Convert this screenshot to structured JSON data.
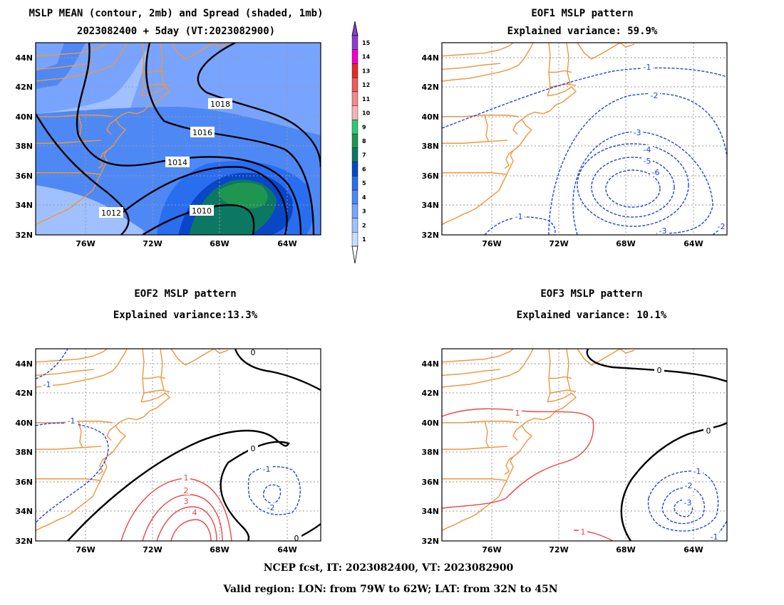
{
  "titles": {
    "p1_line1": "MSLP MEAN (contour, 2mb) and Spread (shaded, 1mb)",
    "p1_line2": "2023082400 + 5day (VT:2023082900)",
    "p2_line1": "EOF1 MSLP pattern",
    "p2_line2": "Explained variance: 59.9%",
    "p3_line1": "EOF2 MSLP pattern",
    "p3_line2": "Explained variance:13.3%",
    "p4_line1": "EOF3 MSLP pattern",
    "p4_line2": "Explained variance: 10.1%"
  },
  "footer": {
    "line1": "NCEP fcst, IT: 2023082400, VT: 2023082900",
    "line2": "Valid region: LON: from 79W to 62W; LAT: from 32N to 45N"
  },
  "axes": {
    "lat_labels": [
      "32N",
      "34N",
      "36N",
      "38N",
      "40N",
      "42N",
      "44N"
    ],
    "lon_labels": [
      "76W",
      "72W",
      "68W",
      "64W"
    ]
  },
  "colorbar": {
    "labels": [
      "1",
      "2",
      "3",
      "4",
      "5",
      "6",
      "7",
      "8",
      "9",
      "10",
      "11",
      "12",
      "13",
      "14",
      "15"
    ],
    "colors": [
      "#c8dcff",
      "#a0c0ff",
      "#78a4ff",
      "#4e88f5",
      "#2a6ef0",
      "#0a46c8",
      "#0c7864",
      "#1e9650",
      "#30c878",
      "#f5b4b4",
      "#f08c8c",
      "#f05a5a",
      "#e82828",
      "#f000c8",
      "#8c3cd2"
    ]
  },
  "panels": [
    {
      "id": "mean",
      "contours": [
        {
          "label": "1010",
          "color": "#000000",
          "dashed": false
        },
        {
          "label": "1012",
          "color": "#000000",
          "dashed": false
        },
        {
          "label": "1014",
          "color": "#000000",
          "dashed": false
        },
        {
          "label": "1016",
          "color": "#000000",
          "dashed": false
        },
        {
          "label": "1018",
          "color": "#000000",
          "dashed": false
        }
      ]
    },
    {
      "id": "eof1",
      "contours": [
        {
          "label": "-1",
          "color": "#2244dd",
          "dashed": true
        },
        {
          "label": "-2",
          "color": "#2244dd",
          "dashed": true
        },
        {
          "label": "-3",
          "color": "#2244dd",
          "dashed": true
        },
        {
          "label": "-4",
          "color": "#2244dd",
          "dashed": true
        },
        {
          "label": "-5",
          "color": "#2244dd",
          "dashed": true
        },
        {
          "label": "-6",
          "color": "#2244dd",
          "dashed": true
        },
        {
          "label": "-1",
          "color": "#2244dd",
          "dashed": true
        },
        {
          "label": "-3",
          "color": "#2244dd",
          "dashed": true
        },
        {
          "label": "-2",
          "color": "#2244dd",
          "dashed": true
        }
      ]
    },
    {
      "id": "eof2",
      "contours": [
        {
          "label": "0",
          "color": "#000000",
          "dashed": false
        },
        {
          "label": "0",
          "color": "#000000",
          "dashed": false
        },
        {
          "label": "0",
          "color": "#000000",
          "dashed": false
        },
        {
          "label": "-1",
          "color": "#2244dd",
          "dashed": true
        },
        {
          "label": "-1",
          "color": "#2244dd",
          "dashed": true
        },
        {
          "label": "-1",
          "color": "#2244dd",
          "dashed": true
        },
        {
          "label": "-2",
          "color": "#2244dd",
          "dashed": true
        },
        {
          "label": "1",
          "color": "#ee4444",
          "dashed": false
        },
        {
          "label": "2",
          "color": "#ee4444",
          "dashed": false
        },
        {
          "label": "3",
          "color": "#ee4444",
          "dashed": false
        },
        {
          "label": "4",
          "color": "#ee4444",
          "dashed": false
        }
      ]
    },
    {
      "id": "eof3",
      "contours": [
        {
          "label": "0",
          "color": "#000000",
          "dashed": false
        },
        {
          "label": "0",
          "color": "#000000",
          "dashed": false
        },
        {
          "label": "1",
          "color": "#ee4444",
          "dashed": false
        },
        {
          "label": "1",
          "color": "#ee4444",
          "dashed": false
        },
        {
          "label": "-1",
          "color": "#2244dd",
          "dashed": true
        },
        {
          "label": "-2",
          "color": "#2244dd",
          "dashed": true
        },
        {
          "label": "-3",
          "color": "#2244dd",
          "dashed": true
        },
        {
          "label": "-1",
          "color": "#2244dd",
          "dashed": true
        }
      ]
    }
  ]
}
